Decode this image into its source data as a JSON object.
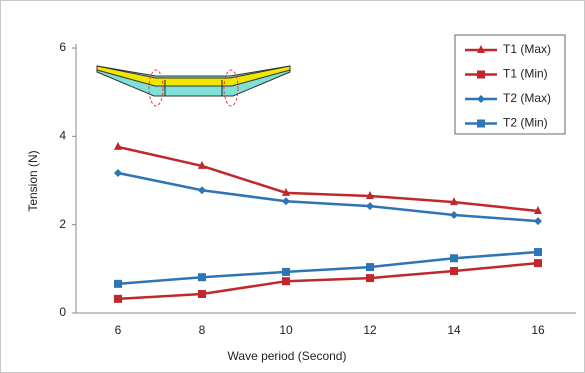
{
  "chart_data": {
    "type": "line",
    "x_label": "Wave period (Second)",
    "y_label": "Tension (N)",
    "categories": [
      "6",
      "8",
      "10",
      "12",
      "14",
      "16"
    ],
    "ylim": [
      0,
      6
    ],
    "yticks": [
      0,
      2,
      4,
      6
    ],
    "legend": "top-right",
    "series": [
      {
        "name": "T1 (Max)",
        "color": "#c0282d",
        "marker": "triangle",
        "values": [
          3.76,
          3.33,
          2.72,
          2.65,
          2.51,
          2.31
        ]
      },
      {
        "name": "T1 (Min)",
        "color": "#c0282d",
        "marker": "square",
        "values": [
          0.32,
          0.43,
          0.72,
          0.79,
          0.95,
          1.13
        ]
      },
      {
        "name": "T2 (Max)",
        "color": "#2e75b6",
        "marker": "diamond",
        "values": [
          3.17,
          2.78,
          2.53,
          2.42,
          2.22,
          2.08
        ]
      },
      {
        "name": "T2 (Min)",
        "color": "#2e75b6",
        "marker": "square",
        "values": [
          0.66,
          0.81,
          0.93,
          1.04,
          1.24,
          1.38
        ]
      }
    ]
  }
}
